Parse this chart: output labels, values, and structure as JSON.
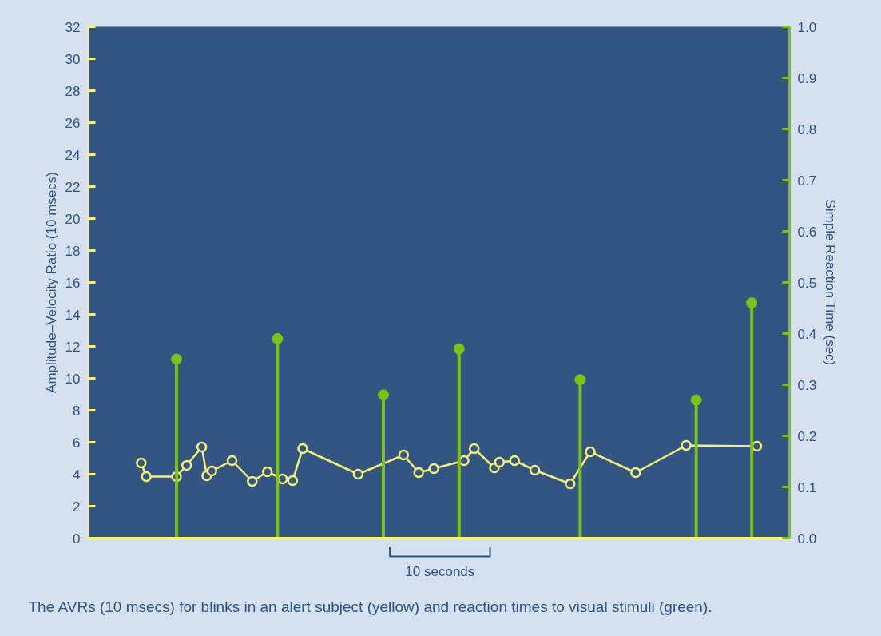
{
  "chart_data": {
    "type": "line",
    "ylabel": "Amplitude–Velocity Ratio (10 msecs)",
    "y2label": "Simple Reaction Time (sec)",
    "categories": [
      null,
      null,
      null,
      null,
      null,
      null,
      null,
      null,
      null,
      null,
      null,
      null,
      null,
      null,
      null,
      null,
      null,
      null,
      null,
      null,
      null,
      null,
      null,
      null,
      null,
      null,
      null,
      null,
      null,
      null,
      null,
      null,
      null,
      null,
      null,
      null,
      null,
      null,
      null,
      null,
      null,
      null,
      null,
      null,
      null,
      null,
      null,
      null,
      null,
      null,
      null,
      null,
      null,
      null,
      null,
      null,
      null,
      null,
      null,
      null,
      null,
      null,
      null,
      null,
      null,
      null,
      null,
      null,
      null,
      null,
      null,
      null,
      null,
      null,
      null,
      null,
      null,
      null,
      null,
      null,
      null,
      null,
      null,
      null,
      null,
      null,
      null,
      null,
      null,
      null,
      null,
      null,
      null,
      null,
      null,
      null,
      null,
      null,
      null,
      null,
      null,
      null,
      null,
      null,
      null,
      null,
      null,
      null,
      null,
      null,
      null,
      null,
      null,
      null,
      null,
      null,
      null,
      null,
      null,
      null,
      null,
      null,
      null,
      null,
      null,
      null,
      null,
      null,
      null,
      null,
      null,
      null,
      null,
      null,
      null,
      null,
      null,
      null,
      null
    ],
    "ylim": [
      0,
      32
    ],
    "yticks": [
      0,
      2,
      4,
      6,
      8,
      10,
      12,
      14,
      16,
      18,
      20,
      22,
      24,
      26,
      28,
      30,
      32
    ],
    "y2lim": [
      0,
      1.0
    ],
    "y2ticks": [
      {
        "value": 0,
        "label": "0.0"
      },
      0.1,
      0.2,
      0.3,
      0.4,
      0.5,
      0.6,
      0.7,
      0.8,
      0.9,
      {
        "value": 1.0,
        "label": "1.0"
      }
    ],
    "marker": "circle",
    "series": [
      {
        "color": "#f7f07a",
        "values": [
          null,
          null,
          null,
          null,
          null,
          null,
          null,
          null,
          null,
          null,
          4.7,
          3.85,
          null,
          null,
          null,
          null,
          null,
          3.85,
          null,
          4.55,
          null,
          null,
          5.7,
          3.9,
          4.2,
          null,
          null,
          null,
          4.85,
          null,
          null,
          null,
          3.55,
          null,
          null,
          4.15,
          null,
          null,
          3.7,
          null,
          3.6,
          null,
          5.6,
          null,
          null,
          null,
          null,
          null,
          null,
          null,
          null,
          null,
          null,
          4.0,
          null,
          null,
          null,
          null,
          null,
          null,
          null,
          null,
          5.2,
          null,
          null,
          4.1,
          null,
          null,
          4.35,
          null,
          null,
          null,
          null,
          null,
          4.85,
          null,
          5.6,
          null,
          null,
          null,
          4.4,
          4.75,
          null,
          null,
          4.85,
          null,
          null,
          null,
          4.25,
          null,
          null,
          null,
          null,
          null,
          null,
          3.4,
          null,
          null,
          null,
          5.4,
          null,
          null,
          null,
          null,
          null,
          null,
          null,
          null,
          4.1,
          null,
          null,
          null,
          null,
          null,
          null,
          null,
          null,
          null,
          5.8,
          null,
          null,
          null,
          null,
          null,
          null,
          null,
          null,
          null,
          null,
          null,
          null,
          null,
          5.75,
          null,
          null,
          null,
          null,
          null,
          null
        ]
      },
      {
        "type": "lollipop",
        "axis": "y2",
        "color": "#7dc11a",
        "values": [
          null,
          null,
          null,
          null,
          null,
          null,
          null,
          null,
          null,
          null,
          null,
          null,
          null,
          null,
          null,
          null,
          null,
          0.35,
          null,
          null,
          null,
          null,
          null,
          null,
          null,
          null,
          null,
          null,
          null,
          null,
          null,
          null,
          null,
          null,
          null,
          null,
          null,
          0.39,
          null,
          null,
          null,
          null,
          null,
          null,
          null,
          null,
          null,
          null,
          null,
          null,
          null,
          null,
          null,
          null,
          null,
          null,
          null,
          null,
          0.28,
          null,
          null,
          null,
          null,
          null,
          null,
          null,
          null,
          null,
          null,
          null,
          null,
          null,
          null,
          0.37,
          null,
          null,
          null,
          null,
          null,
          null,
          null,
          null,
          null,
          null,
          null,
          null,
          null,
          null,
          null,
          null,
          null,
          null,
          null,
          null,
          null,
          null,
          null,
          0.31,
          null,
          null,
          null,
          null,
          null,
          null,
          null,
          null,
          null,
          null,
          null,
          null,
          null,
          null,
          null,
          null,
          null,
          null,
          null,
          null,
          null,
          null,
          0.27,
          null,
          null,
          null,
          null,
          null,
          null,
          null,
          null,
          null,
          null,
          0.46,
          null,
          null,
          null,
          null,
          null,
          null,
          null
        ]
      }
    ],
    "annotations": [
      "10 seconds",
      "The AVRs (10 msecs) for blinks in an alert subject (yellow) and reaction times to visual stimuli (green)."
    ]
  }
}
